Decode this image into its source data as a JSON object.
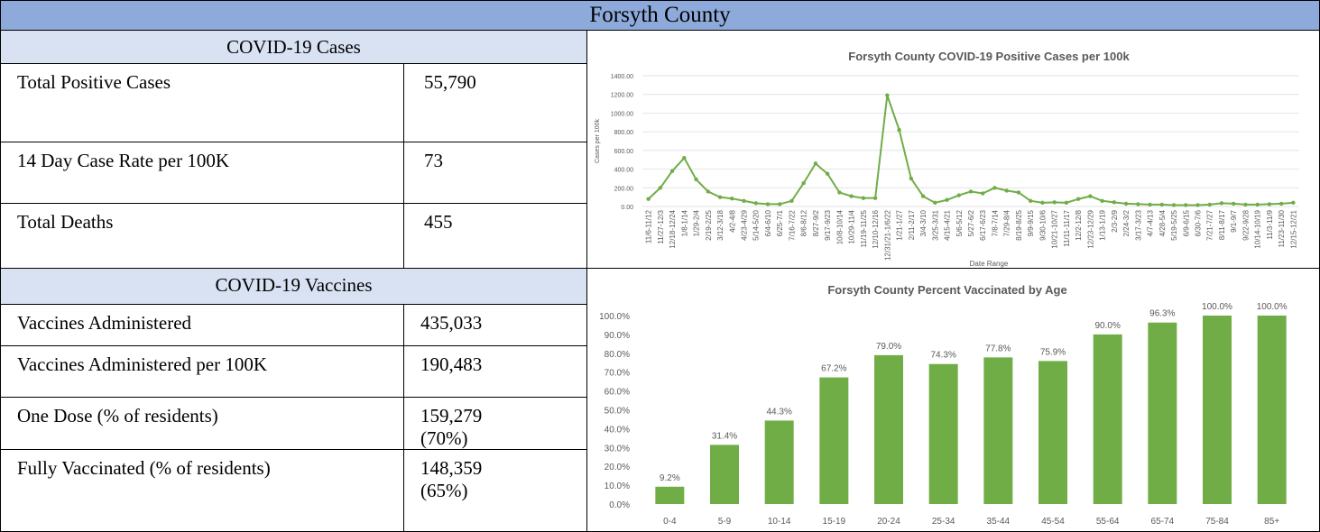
{
  "header": {
    "title": "Forsyth County"
  },
  "cases": {
    "title": "COVID-19 Cases",
    "rows": [
      [
        "Total Positive Cases",
        "55,790"
      ],
      [
        "14 Day Case Rate per 100K",
        "73"
      ],
      [
        "Total Deaths",
        "455"
      ]
    ]
  },
  "vaccines": {
    "title": "COVID-19 Vaccines",
    "rows": [
      [
        "Vaccines Administered",
        "435,033"
      ],
      [
        "Vaccines Administered per 100K",
        "190,483"
      ],
      [
        "One Dose (% of residents)",
        "159,279 (70%)"
      ],
      [
        "Fully Vaccinated (% of residents)",
        "148,359 (65%)"
      ]
    ]
  },
  "chart_data": [
    {
      "type": "line",
      "title": "Forsyth County COVID-19 Positive Cases per 100k",
      "x_label": "Date Range",
      "y_label": "Cases per 100k",
      "color": "#70ad47",
      "categories": [
        "11/6-11/12",
        "11/27-12/3",
        "12/18-12/24",
        "1/8-1/14",
        "1/29-2/4",
        "2/19-2/25",
        "3/12-3/18",
        "4/2-4/8",
        "4/23-4/29",
        "5/14-5/20",
        "6/4-6/10",
        "6/25-7/1",
        "7/16-7/22",
        "8/6-8/12",
        "8/27-9/2",
        "9/17-9/23",
        "10/8-10/14",
        "10/29-11/4",
        "11/19-11/25",
        "12/10-12/16",
        "12/31/21-1/6/22",
        "1/21-1/27",
        "2/11-2/17",
        "3/4-3/10",
        "3/25-3/31",
        "4/15-4/21",
        "5/6-5/12",
        "5/27-6/2",
        "6/17-6/23",
        "7/8-7/14",
        "7/29-8/4",
        "8/19-8/25",
        "9/9-9/15",
        "9/30-10/6",
        "10/21-10/27",
        "11/11-11/17",
        "12/2-12/8",
        "12/23-12/29",
        "1/13-1/19",
        "2/3-2/9",
        "2/24-3/2",
        "3/17-3/23",
        "4/7-4/13",
        "4/28-5/4",
        "5/19-5/25",
        "6/9-6/15",
        "6/30-7/6",
        "7/21-7/27",
        "8/11-8/17",
        "9/1-9/7",
        "9/22-9/28",
        "10/14-10/19",
        "11/3-11/9",
        "11/23-11/30",
        "12/15-12/21"
      ],
      "values": [
        80,
        200,
        380,
        520,
        290,
        160,
        100,
        85,
        60,
        35,
        25,
        25,
        60,
        250,
        460,
        350,
        150,
        110,
        90,
        90,
        1190,
        820,
        300,
        110,
        40,
        70,
        120,
        160,
        140,
        200,
        170,
        150,
        60,
        40,
        45,
        40,
        80,
        110,
        60,
        45,
        30,
        25,
        20,
        20,
        15,
        15,
        15,
        20,
        35,
        30,
        20,
        20,
        25,
        30,
        40
      ],
      "ylim": [
        0,
        1400
      ],
      "yticks": [
        {
          "value": 0,
          "label": "0.00"
        },
        {
          "value": 200,
          "label": "200.00"
        },
        {
          "value": 400,
          "label": "400.00"
        },
        {
          "value": 600,
          "label": "600.00"
        },
        {
          "value": 800,
          "label": "800.00"
        },
        {
          "value": 1000,
          "label": "1000.00"
        },
        {
          "value": 1200,
          "label": "1200.00"
        },
        {
          "value": 1400,
          "label": "1400.00"
        }
      ],
      "grid": true
    },
    {
      "type": "bar",
      "title": "Forsyth County Percent Vaccinated by Age",
      "color": "#70ad47",
      "categories": [
        "0-4",
        "5-9",
        "10-14",
        "15-19",
        "20-24",
        "25-34",
        "35-44",
        "45-54",
        "55-64",
        "65-74",
        "75-84",
        "85+"
      ],
      "values": [
        9.2,
        31.4,
        44.3,
        67.2,
        79.0,
        74.3,
        77.8,
        75.9,
        90.0,
        96.3,
        100.0,
        100.0
      ],
      "value_labels": [
        "9.2%",
        "31.4%",
        "44.3%",
        "67.2%",
        "79.0%",
        "74.3%",
        "77.8%",
        "75.9%",
        "90.0%",
        "96.3%",
        "100.0%",
        "100.0%"
      ],
      "ylim": [
        0,
        100
      ],
      "yticks": [
        {
          "value": 0,
          "label": "0.0%"
        },
        {
          "value": 10,
          "label": "10.0%"
        },
        {
          "value": 20,
          "label": "20.0%"
        },
        {
          "value": 30,
          "label": "30.0%"
        },
        {
          "value": 40,
          "label": "40.0%"
        },
        {
          "value": 50,
          "label": "50.0%"
        },
        {
          "value": 60,
          "label": "60.0%"
        },
        {
          "value": 70,
          "label": "70.0%"
        },
        {
          "value": 80,
          "label": "80.0%"
        },
        {
          "value": 90,
          "label": "90.0%"
        },
        {
          "value": 100,
          "label": "100.0%"
        }
      ],
      "grid": false
    }
  ]
}
